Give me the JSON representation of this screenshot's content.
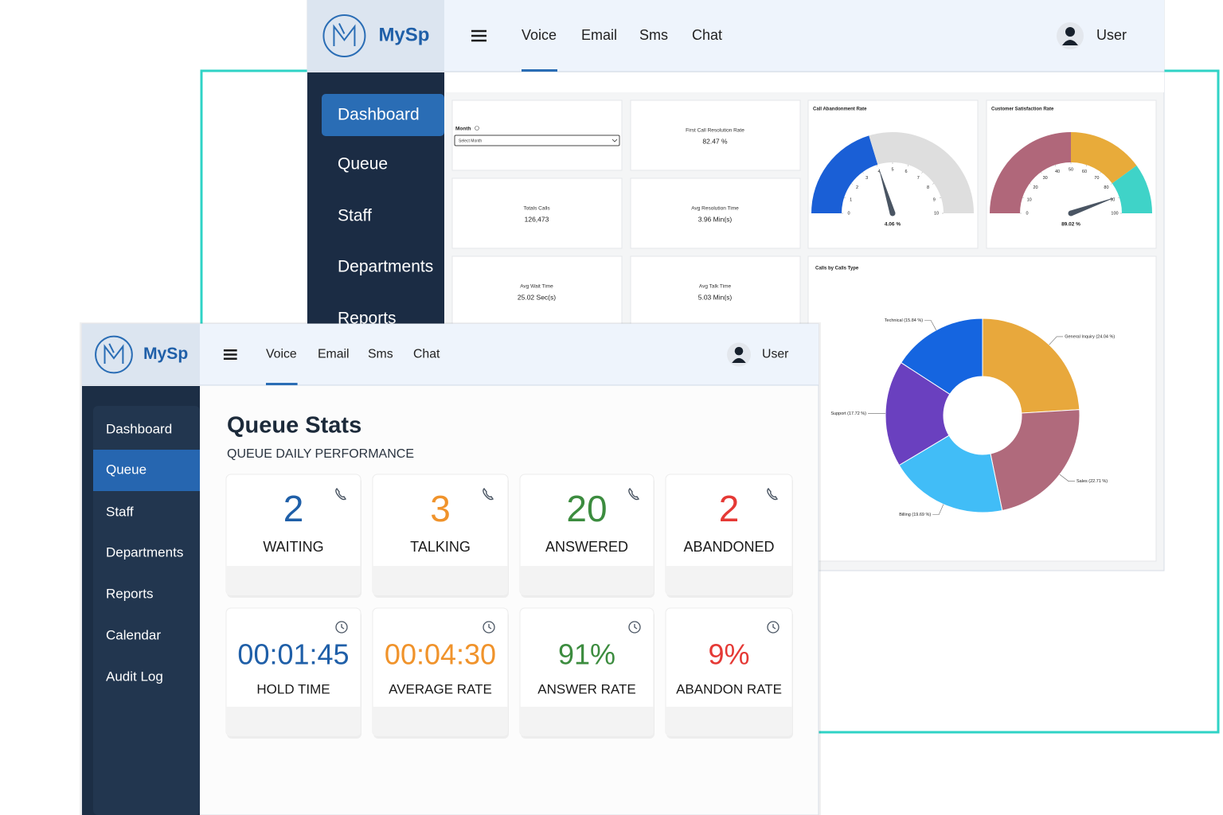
{
  "back_window": {
    "brand": "MySp",
    "tabs": [
      "Voice",
      "Email",
      "Sms",
      "Chat"
    ],
    "active_tab": 0,
    "user": "User",
    "sidebar": [
      "Dashboard",
      "Queue",
      "Staff",
      "Departments",
      "Reports"
    ],
    "active_item": 0,
    "month_filter": {
      "label": "Month",
      "placeholder": "Select Month"
    },
    "kpis": [
      {
        "label": "First Call Resolution Rate",
        "value": "82.47 %"
      },
      {
        "label": "Totals Calls",
        "value": "126,473"
      },
      {
        "label": "Avg Resolution Time",
        "value": "3.96 Min(s)"
      },
      {
        "label": "Avg Wait Time",
        "value": "25.02 Sec(s)"
      },
      {
        "label": "Avg Talk Time",
        "value": "5.03 Min(s)"
      }
    ],
    "charts": [
      {
        "type": "gauge",
        "title": "Call Abandonment Rate",
        "value": 4.06,
        "value_label": "4.06 %",
        "ylim": [
          0,
          10
        ],
        "yticks": [
          0,
          1,
          2,
          3,
          4,
          5,
          6,
          7,
          8,
          9,
          10
        ],
        "color": "#1a5fd6",
        "track_color": "#dedede"
      },
      {
        "type": "gauge",
        "title": "Customer Satisfaction Rate",
        "value": 89.02,
        "value_label": "89.02 %",
        "ylim": [
          0,
          100
        ],
        "yticks": [
          0,
          10,
          20,
          30,
          40,
          50,
          60,
          70,
          80,
          90,
          100
        ],
        "bands": [
          {
            "from": 0,
            "to": 50,
            "color": "#b0677a"
          },
          {
            "from": 50,
            "to": 80,
            "color": "#e8ab3a"
          },
          {
            "from": 80,
            "to": 100,
            "color": "#3fd3c8"
          }
        ]
      },
      {
        "type": "donut",
        "title": "Calls by Calls Type",
        "slices": [
          {
            "label": "General Inquiry (24.04 %)",
            "value": 24.04,
            "color": "#e8a83c"
          },
          {
            "label": "Sales (22.71 %)",
            "value": 22.71,
            "color": "#b06a7c"
          },
          {
            "label": "Billing (19.69 %)",
            "value": 19.69,
            "color": "#41bdf7"
          },
          {
            "label": "Support (17.72 %)",
            "value": 17.72,
            "color": "#6a40bf"
          },
          {
            "label": "Technical (15.84 %)",
            "value": 15.84,
            "color": "#1565e0"
          }
        ]
      }
    ]
  },
  "front_window": {
    "brand": "MySp",
    "tabs": [
      "Voice",
      "Email",
      "Sms",
      "Chat"
    ],
    "active_tab": 0,
    "user": "User",
    "sidebar": [
      "Dashboard",
      "Queue",
      "Staff",
      "Departments",
      "Reports",
      "Calendar",
      "Audit Log"
    ],
    "active_item": 1,
    "title": "Queue Stats",
    "subtitle": "QUEUE DAILY PERFORMANCE",
    "rows": [
      [
        {
          "value": "2",
          "label": "WAITING",
          "color": "#1f5fa8",
          "icon": "phone"
        },
        {
          "value": "3",
          "label": "TALKING",
          "color": "#f0932b",
          "icon": "phone"
        },
        {
          "value": "20",
          "label": "ANSWERED",
          "color": "#3c8c3f",
          "icon": "phone"
        },
        {
          "value": "2",
          "label": "ABANDONED",
          "color": "#e53935",
          "icon": "phone"
        }
      ],
      [
        {
          "value": "00:01:45",
          "label": "HOLD TIME",
          "color": "#1f5fa8",
          "icon": "clock"
        },
        {
          "value": "00:04:30",
          "label": "AVERAGE RATE",
          "color": "#f0932b",
          "icon": "clock"
        },
        {
          "value": "91%",
          "label": "ANSWER RATE",
          "color": "#3c8c3f",
          "icon": "clock"
        },
        {
          "value": "9%",
          "label": "ABANDON RATE",
          "color": "#e53935",
          "icon": "clock"
        }
      ]
    ]
  }
}
